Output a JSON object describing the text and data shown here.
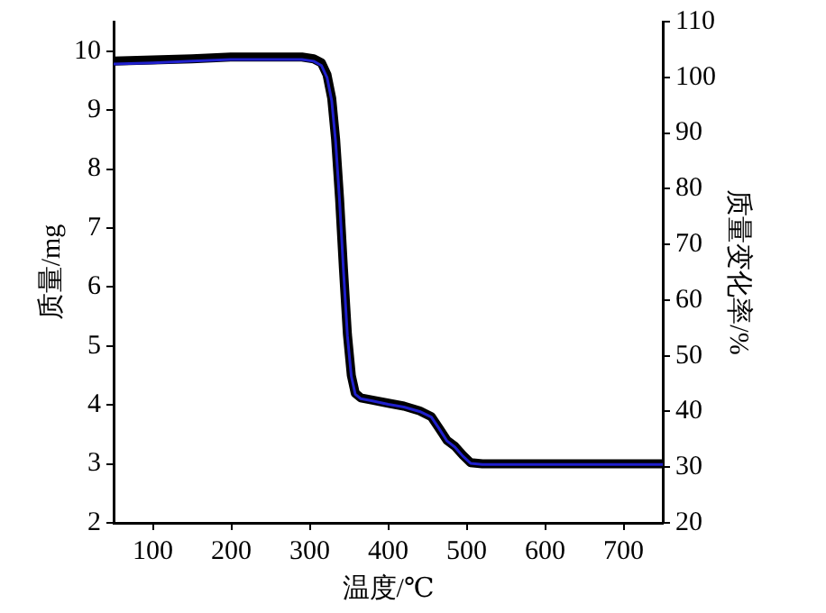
{
  "chart_data": {
    "type": "line",
    "xlabel": "温度/℃",
    "ylabel": "质量/mg",
    "y2label": "质量变化率/%",
    "xlim": [
      50,
      750
    ],
    "xticks": [
      100,
      200,
      300,
      400,
      500,
      600,
      700
    ],
    "ylim": [
      2,
      10.5
    ],
    "yticks": [
      2,
      3,
      4,
      5,
      6,
      7,
      8,
      9,
      10
    ],
    "y2lim": [
      20,
      110
    ],
    "y2ticks": [
      20,
      30,
      40,
      50,
      60,
      70,
      80,
      90,
      100,
      110
    ],
    "legend": false,
    "marker": "none",
    "line_style": "solid",
    "series": [
      {
        "color": "#000000",
        "x": [
          50,
          100,
          150,
          200,
          250,
          290,
          305,
          315,
          322,
          328,
          333,
          338,
          343,
          348,
          353,
          358,
          365,
          380,
          400,
          420,
          440,
          455,
          465,
          475,
          485,
          495,
          505,
          520,
          600,
          700,
          750
        ],
        "values": [
          9.83,
          9.85,
          9.87,
          9.9,
          9.9,
          9.9,
          9.87,
          9.8,
          9.6,
          9.2,
          8.5,
          7.5,
          6.3,
          5.2,
          4.5,
          4.2,
          4.12,
          4.08,
          4.03,
          3.98,
          3.9,
          3.8,
          3.6,
          3.4,
          3.3,
          3.15,
          3.02,
          3.0,
          3.0,
          3.0,
          3.0
        ]
      },
      {
        "color": "#1f1fcc",
        "axis": "y2",
        "x": [
          50,
          100,
          150,
          200,
          250,
          290,
          305,
          315,
          322,
          328,
          333,
          338,
          343,
          348,
          353,
          358,
          365,
          380,
          400,
          420,
          440,
          455,
          465,
          475,
          485,
          495,
          505,
          520,
          600,
          700,
          750
        ],
        "values": [
          102.4,
          102.6,
          102.9,
          103.2,
          103.2,
          103.2,
          102.9,
          102.1,
          100.0,
          95.8,
          88.4,
          77.9,
          65.3,
          53.6,
          46.3,
          43.1,
          42.3,
          41.9,
          41.3,
          40.8,
          40.0,
          39.0,
          36.9,
          34.7,
          33.6,
          32.0,
          30.7,
          30.5,
          30.5,
          30.5,
          30.5
        ]
      }
    ]
  }
}
